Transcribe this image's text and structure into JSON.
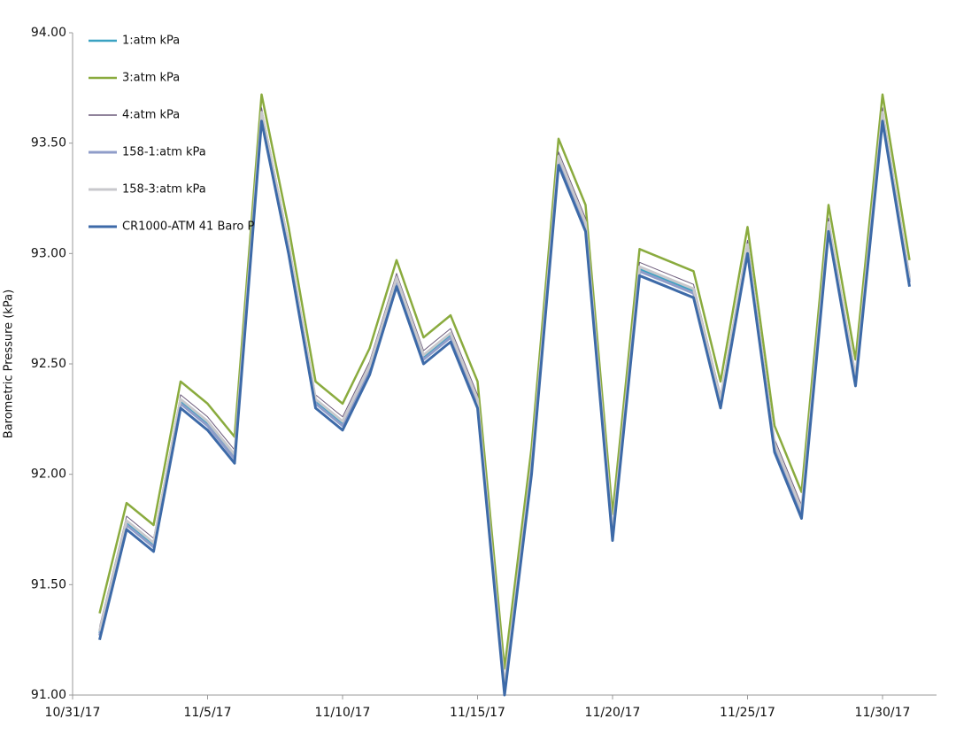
{
  "chart_data": {
    "type": "line",
    "y_label": "Barometric Pressure (kPa)",
    "x": [
      "11/1/17",
      "11/2/17",
      "11/3/17",
      "11/4/17",
      "11/5/17",
      "11/6/17",
      "11/7/17",
      "11/8/17",
      "11/9/17",
      "11/10/17",
      "11/11/17",
      "11/12/17",
      "11/13/17",
      "11/14/17",
      "11/15/17",
      "11/16/17",
      "11/17/17",
      "11/18/17",
      "11/19/17",
      "11/20/17",
      "11/21/17",
      "11/22/17",
      "11/23/17",
      "11/24/17",
      "11/25/17",
      "11/26/17",
      "11/27/17",
      "11/28/17",
      "11/29/17",
      "11/30/17",
      "12/1/17"
    ],
    "xlim": [
      "10/31/17",
      "12/2/17"
    ],
    "xticks": [
      "10/31/17",
      "11/5/17",
      "11/10/17",
      "11/15/17",
      "11/20/17",
      "11/25/17",
      "11/30/17"
    ],
    "ylim": [
      91,
      94
    ],
    "yticks": [
      {
        "value": 91,
        "label": "91.00"
      },
      {
        "value": 91.5,
        "label": "91.50"
      },
      {
        "value": 92,
        "label": "92.00"
      },
      {
        "value": 92.5,
        "label": "92.50"
      },
      {
        "value": 93,
        "label": "93.00"
      },
      {
        "value": 93.5,
        "label": "93.50"
      },
      {
        "value": 94,
        "label": "94.00"
      }
    ],
    "grid": false,
    "legend": "top-left",
    "series": [
      {
        "name": "1:atm kPa",
        "color": "#3aa2c2",
        "width": 2.5,
        "values": [
          91.28,
          91.78,
          91.68,
          92.33,
          92.23,
          92.08,
          93.63,
          93.03,
          92.33,
          92.23,
          92.48,
          92.88,
          92.53,
          92.63,
          92.33,
          91.03,
          92.03,
          93.43,
          93.13,
          91.73,
          92.93,
          92.88,
          92.83,
          92.33,
          93.03,
          92.13,
          91.83,
          93.13,
          92.43,
          93.63,
          92.88
        ]
      },
      {
        "name": "3:atm kPa",
        "color": "#8aab3e",
        "width": 2.5,
        "values": [
          91.37,
          91.87,
          91.77,
          92.42,
          92.32,
          92.17,
          93.72,
          93.12,
          92.42,
          92.32,
          92.57,
          92.97,
          92.62,
          92.72,
          92.42,
          91.12,
          92.12,
          93.52,
          93.22,
          91.82,
          93.02,
          92.97,
          92.92,
          92.42,
          93.12,
          92.22,
          91.92,
          93.22,
          92.52,
          93.72,
          92.97
        ]
      },
      {
        "name": "4:atm kPa",
        "color": "#6b5a7a",
        "width": 1,
        "values": [
          91.31,
          91.81,
          91.71,
          92.36,
          92.26,
          92.11,
          93.66,
          93.06,
          92.36,
          92.26,
          92.51,
          92.91,
          92.56,
          92.66,
          92.36,
          91.06,
          92.06,
          93.46,
          93.16,
          91.76,
          92.96,
          92.91,
          92.86,
          92.36,
          93.06,
          92.16,
          91.86,
          93.16,
          92.46,
          93.66,
          92.91
        ]
      },
      {
        "name": "158-1:atm kPa",
        "color": "#8f9dc9",
        "width": 3,
        "values": [
          91.27,
          91.77,
          91.67,
          92.32,
          92.22,
          92.07,
          93.62,
          93.02,
          92.32,
          92.22,
          92.47,
          92.87,
          92.52,
          92.62,
          92.32,
          91.02,
          92.02,
          93.42,
          93.12,
          91.72,
          92.92,
          92.87,
          92.82,
          92.32,
          93.02,
          92.12,
          91.82,
          93.12,
          92.42,
          93.62,
          92.87
        ]
      },
      {
        "name": "158-3:atm kPa",
        "color": "#c8c8cc",
        "width": 3,
        "values": [
          91.29,
          91.79,
          91.69,
          92.34,
          92.24,
          92.09,
          93.64,
          93.04,
          92.34,
          92.24,
          92.49,
          92.89,
          92.54,
          92.64,
          92.34,
          91.04,
          92.04,
          93.44,
          93.14,
          91.74,
          92.94,
          92.89,
          92.84,
          92.34,
          93.04,
          92.14,
          91.84,
          93.14,
          92.44,
          93.64,
          92.89
        ]
      },
      {
        "name": "CR1000-ATM 41 Baro P",
        "color": "#3d6aa8",
        "width": 3,
        "values": [
          91.25,
          91.75,
          91.65,
          92.3,
          92.2,
          92.05,
          93.6,
          93.0,
          92.3,
          92.2,
          92.45,
          92.85,
          92.5,
          92.6,
          92.3,
          91.0,
          92.0,
          93.4,
          93.1,
          91.7,
          92.9,
          92.85,
          92.8,
          92.3,
          93.0,
          92.1,
          91.8,
          93.1,
          92.4,
          93.6,
          92.85
        ]
      }
    ]
  }
}
